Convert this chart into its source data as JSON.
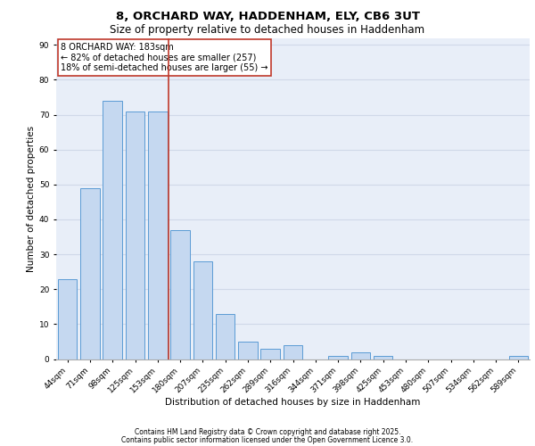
{
  "title_line1": "8, ORCHARD WAY, HADDENHAM, ELY, CB6 3UT",
  "title_line2": "Size of property relative to detached houses in Haddenham",
  "xlabel": "Distribution of detached houses by size in Haddenham",
  "ylabel": "Number of detached properties",
  "categories": [
    "44sqm",
    "71sqm",
    "98sqm",
    "125sqm",
    "153sqm",
    "180sqm",
    "207sqm",
    "235sqm",
    "262sqm",
    "289sqm",
    "316sqm",
    "344sqm",
    "371sqm",
    "398sqm",
    "425sqm",
    "453sqm",
    "480sqm",
    "507sqm",
    "534sqm",
    "562sqm",
    "589sqm"
  ],
  "values": [
    23,
    49,
    74,
    71,
    71,
    37,
    28,
    13,
    5,
    3,
    4,
    0,
    1,
    2,
    1,
    0,
    0,
    0,
    0,
    0,
    1
  ],
  "bar_color": "#c5d8f0",
  "bar_edge_color": "#5b9bd5",
  "vline_color": "#c0392b",
  "annotation_text": "8 ORCHARD WAY: 183sqm\n← 82% of detached houses are smaller (257)\n18% of semi-detached houses are larger (55) →",
  "annotation_box_color": "white",
  "annotation_box_edge_color": "#c0392b",
  "ylim": [
    0,
    92
  ],
  "yticks": [
    0,
    10,
    20,
    30,
    40,
    50,
    60,
    70,
    80,
    90
  ],
  "grid_color": "#d0d8e8",
  "background_color": "#e8eef8",
  "footer_line1": "Contains HM Land Registry data © Crown copyright and database right 2025.",
  "footer_line2": "Contains public sector information licensed under the Open Government Licence 3.0.",
  "title_fontsize": 9.5,
  "subtitle_fontsize": 8.5,
  "axis_label_fontsize": 7.5,
  "tick_fontsize": 6.5,
  "annotation_fontsize": 7,
  "footer_fontsize": 5.5
}
